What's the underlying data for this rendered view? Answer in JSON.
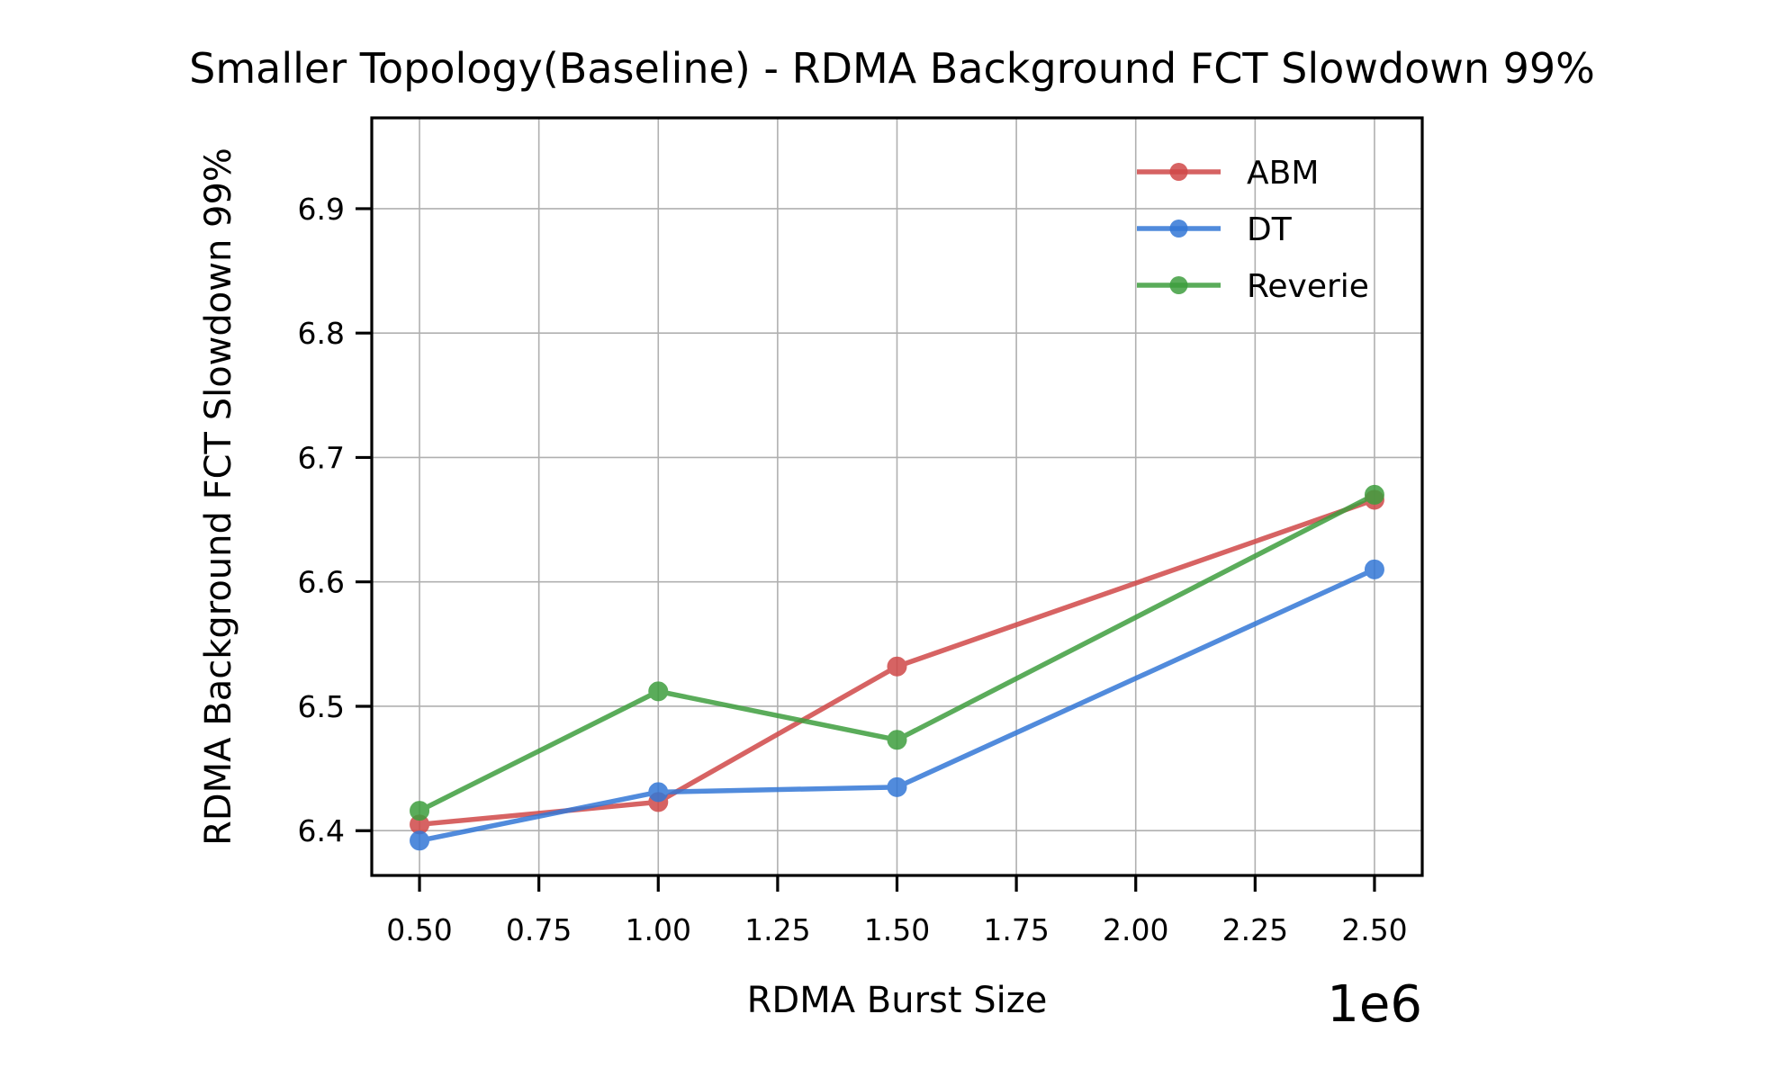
{
  "chart_data": {
    "type": "line",
    "title": "Smaller Topology(Baseline) - RDMA Background FCT Slowdown 99%",
    "xlabel": "RDMA Burst Size",
    "ylabel": "RDMA Background FCT Slowdown 99%",
    "x_offset_label": "1e6",
    "x": [
      0.5,
      1.0,
      1.5,
      2.5
    ],
    "xlim": [
      0.4,
      2.6
    ],
    "ylim": [
      6.364,
      6.973
    ],
    "x_ticks": [
      0.5,
      0.75,
      1.0,
      1.25,
      1.5,
      1.75,
      2.0,
      2.25,
      2.5
    ],
    "x_tick_labels": [
      "0.50",
      "0.75",
      "1.00",
      "1.25",
      "1.50",
      "1.75",
      "2.00",
      "2.25",
      "2.50"
    ],
    "y_ticks": [
      6.4,
      6.5,
      6.6,
      6.7,
      6.8,
      6.9
    ],
    "y_tick_labels": [
      "6.4",
      "6.5",
      "6.6",
      "6.7",
      "6.8",
      "6.9"
    ],
    "grid": true,
    "legend_position": "top-right",
    "series": [
      {
        "name": "ABM",
        "color": "#d04848",
        "values": [
          6.405,
          6.423,
          6.532,
          6.666
        ]
      },
      {
        "name": "DT",
        "color": "#3377d6",
        "values": [
          6.392,
          6.431,
          6.435,
          6.61
        ]
      },
      {
        "name": "Reverie",
        "color": "#3e9e3e",
        "values": [
          6.416,
          6.512,
          6.473,
          6.67
        ]
      }
    ]
  }
}
